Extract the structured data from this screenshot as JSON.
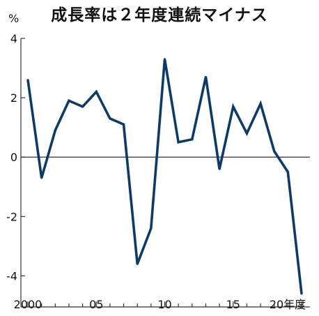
{
  "chart_data": {
    "type": "line",
    "title": "成長率は２年度連続マイナス",
    "ylabel": "%",
    "xlabel": "",
    "ylim": [
      -5,
      4
    ],
    "yticks": [
      4,
      2,
      0,
      -2,
      -4
    ],
    "ytick_labels": [
      "4",
      "2",
      "0",
      "-2",
      "-4"
    ],
    "xlim": [
      2000,
      2020
    ],
    "xticks": [
      2000,
      2005,
      2010,
      2015,
      2020
    ],
    "xtick_labels": [
      "2000",
      "05",
      "10",
      "15",
      "20年度"
    ],
    "x": [
      2000,
      2001,
      2002,
      2003,
      2004,
      2005,
      2006,
      2007,
      2008,
      2009,
      2010,
      2011,
      2012,
      2013,
      2014,
      2015,
      2016,
      2017,
      2018,
      2019,
      2020
    ],
    "series": [
      {
        "values": [
          2.6,
          -0.7,
          0.9,
          1.9,
          1.7,
          2.2,
          1.3,
          1.1,
          -3.6,
          -2.4,
          3.3,
          0.5,
          0.6,
          2.7,
          -0.4,
          1.7,
          0.8,
          1.8,
          0.2,
          -0.5,
          -4.6
        ],
        "color": "#0d3a66"
      }
    ],
    "zero_line_color": "#333333",
    "grid": false,
    "legend": "none"
  }
}
